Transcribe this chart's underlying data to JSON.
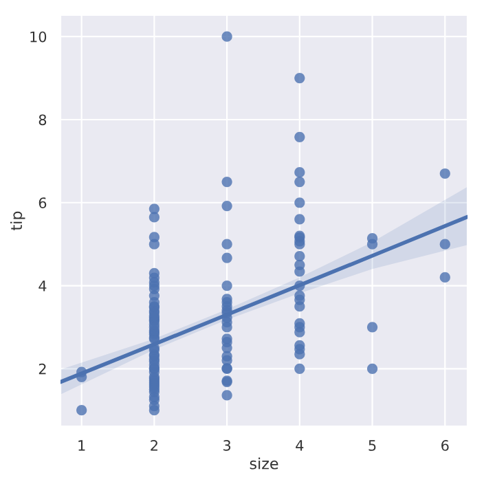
{
  "chart_data": {
    "type": "scatter",
    "xlabel": "size",
    "ylabel": "tip",
    "xlim": [
      0.71,
      6.31
    ],
    "ylim": [
      0.61,
      10.52
    ],
    "xticks": [
      1,
      2,
      3,
      4,
      5,
      6
    ],
    "yticks": [
      2,
      4,
      6,
      8,
      10
    ],
    "grid": true,
    "marker": "circle",
    "series": [
      {
        "color": "#4c72b0",
        "x": [
          1,
          1,
          1,
          2,
          2,
          2,
          2,
          2,
          2,
          2,
          2,
          2,
          2,
          2,
          2,
          2,
          2,
          2,
          2,
          2,
          2,
          2,
          2,
          2,
          2,
          2,
          2,
          2,
          2,
          2,
          2,
          2,
          2,
          2,
          2,
          2,
          2,
          2,
          2,
          2,
          2,
          2,
          2,
          2,
          2,
          2,
          2,
          2,
          2,
          2,
          2,
          3,
          3,
          3,
          3,
          3,
          3,
          3,
          3,
          3,
          3,
          3,
          3,
          3,
          3,
          3,
          3,
          3,
          3,
          3,
          3,
          3,
          3,
          3,
          3,
          4,
          4,
          4,
          4,
          4,
          4,
          4,
          4,
          4,
          4,
          4,
          4,
          4,
          4,
          4,
          4,
          4,
          4,
          4,
          4,
          4,
          4,
          4,
          4,
          5,
          5,
          5,
          5,
          6,
          6,
          6
        ],
        "values": [
          1.0,
          1.8,
          1.92,
          1.0,
          1.1,
          1.25,
          1.32,
          1.44,
          1.5,
          1.56,
          1.61,
          1.66,
          1.71,
          1.76,
          1.8,
          1.92,
          2.0,
          2.01,
          2.09,
          2.18,
          2.23,
          2.31,
          2.34,
          2.45,
          2.5,
          2.72,
          2.75,
          2.83,
          2.88,
          2.92,
          3.0,
          3.07,
          3.15,
          3.18,
          3.23,
          3.27,
          3.35,
          3.39,
          3.48,
          3.5,
          3.6,
          3.76,
          3.92,
          4.0,
          4.08,
          4.19,
          4.3,
          5.0,
          5.17,
          5.65,
          5.85,
          1.36,
          1.68,
          1.71,
          2.0,
          2.01,
          2.2,
          2.3,
          2.5,
          2.64,
          2.72,
          3.0,
          3.12,
          3.23,
          3.35,
          3.41,
          3.5,
          3.6,
          3.68,
          4.0,
          4.67,
          5.0,
          5.92,
          6.5,
          10.0,
          2.0,
          2.35,
          2.47,
          2.56,
          2.88,
          3.0,
          3.09,
          3.5,
          3.66,
          3.76,
          4.0,
          4.34,
          4.5,
          4.71,
          5.0,
          5.07,
          5.16,
          5.2,
          5.6,
          6.0,
          6.5,
          6.73,
          7.58,
          9.0,
          2.0,
          3.0,
          5.0,
          5.14,
          4.2,
          5.0,
          6.7
        ]
      },
      {
        "type": "line",
        "color": "#4c72b0",
        "marker": "none",
        "x": [
          0.71,
          2,
          3,
          4,
          5,
          6.31
        ],
        "values": [
          1.68,
          2.59,
          3.3,
          4.01,
          4.72,
          5.66
        ],
        "lower": [
          1.38,
          2.46,
          3.18,
          3.82,
          4.4,
          4.98
        ],
        "upper": [
          1.98,
          2.72,
          3.43,
          4.2,
          5.05,
          6.38
        ]
      }
    ]
  }
}
